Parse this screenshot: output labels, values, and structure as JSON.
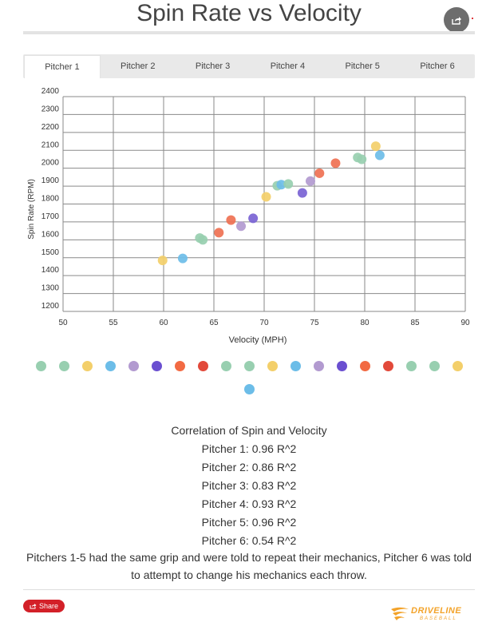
{
  "header": {
    "title": "Spin Rate vs Velocity",
    "share_icon": "share-icon"
  },
  "tabs": [
    {
      "label": "Pitcher 1",
      "active": true
    },
    {
      "label": "Pitcher 2",
      "active": false
    },
    {
      "label": "Pitcher 3",
      "active": false
    },
    {
      "label": "Pitcher 4",
      "active": false
    },
    {
      "label": "Pitcher 5",
      "active": false
    },
    {
      "label": "Pitcher 6",
      "active": false
    }
  ],
  "chart_data": {
    "type": "scatter",
    "xlabel": "Velocity (MPH)",
    "ylabel": "Spin Rate (RPM)",
    "xlim": [
      50,
      90
    ],
    "ylim": [
      1200,
      2400
    ],
    "x_ticks": [
      "50",
      "55",
      "60",
      "65",
      "70",
      "75",
      "80",
      "85",
      "90"
    ],
    "y_ticks": [
      "1200",
      "1300",
      "1400",
      "1500",
      "1600",
      "1700",
      "1800",
      "1900",
      "2000",
      "2100",
      "2200",
      "2300",
      "2400"
    ],
    "grid": true,
    "points": [
      {
        "x": 59.9,
        "y": 1485,
        "color": "#f3cf6a"
      },
      {
        "x": 61.9,
        "y": 1496,
        "color": "#6cbde8"
      },
      {
        "x": 63.6,
        "y": 1610,
        "color": "#98cfb0"
      },
      {
        "x": 63.9,
        "y": 1600,
        "color": "#98cfb0"
      },
      {
        "x": 65.5,
        "y": 1640,
        "color": "#ef7153"
      },
      {
        "x": 66.7,
        "y": 1710,
        "color": "#ef7153"
      },
      {
        "x": 67.7,
        "y": 1676,
        "color": "#b29ad0"
      },
      {
        "x": 68.9,
        "y": 1720,
        "color": "#7a63d4"
      },
      {
        "x": 70.2,
        "y": 1840,
        "color": "#f3cf6a"
      },
      {
        "x": 71.3,
        "y": 1902,
        "color": "#98cfb0"
      },
      {
        "x": 71.7,
        "y": 1908,
        "color": "#6cbde8"
      },
      {
        "x": 72.4,
        "y": 1912,
        "color": "#98cfb0"
      },
      {
        "x": 73.8,
        "y": 1862,
        "color": "#7a63d4"
      },
      {
        "x": 74.6,
        "y": 1928,
        "color": "#b29ad0"
      },
      {
        "x": 75.5,
        "y": 1972,
        "color": "#ef7153"
      },
      {
        "x": 77.1,
        "y": 2028,
        "color": "#ef7153"
      },
      {
        "x": 79.3,
        "y": 2060,
        "color": "#98cfb0"
      },
      {
        "x": 79.7,
        "y": 2050,
        "color": "#98cfb0"
      },
      {
        "x": 81.1,
        "y": 2123,
        "color": "#f3cf6a"
      },
      {
        "x": 81.5,
        "y": 2072,
        "color": "#6cbde8"
      }
    ]
  },
  "legend": {
    "colors": [
      "#98cfb0",
      "#98cfb0",
      "#f3cf6a",
      "#6cbde8",
      "#b29ad0",
      "#6a4fd0",
      "#f26a43",
      "#e2493a",
      "#98cfb0",
      "#98cfb0",
      "#f3cf6a",
      "#6cbde8",
      "#b29ad0",
      "#6a4fd0",
      "#f26a43",
      "#e2493a",
      "#98cfb0",
      "#98cfb0",
      "#f3cf6a",
      "#6cbde8"
    ]
  },
  "stats": {
    "heading": "Correlation of Spin and Velocity",
    "lines": [
      "Pitcher 1: 0.96 R^2",
      "Pitcher 2: 0.86 R^2",
      "Pitcher 3: 0.83 R^2",
      "Pitcher 4: 0.93 R^2",
      "Pitcher 5: 0.96 R^2",
      "Pitcher 6: 0.54 R^2"
    ],
    "note": "Pitchers 1-5 had the same grip and were told to repeat their mechanics, Pitcher 6 was told to attempt to change his mechanics each throw."
  },
  "footer": {
    "share_label": "Share",
    "brand_line1": "DRIVELINE",
    "brand_line2": "BASEBALL",
    "brand_color": "#f3a32a"
  }
}
